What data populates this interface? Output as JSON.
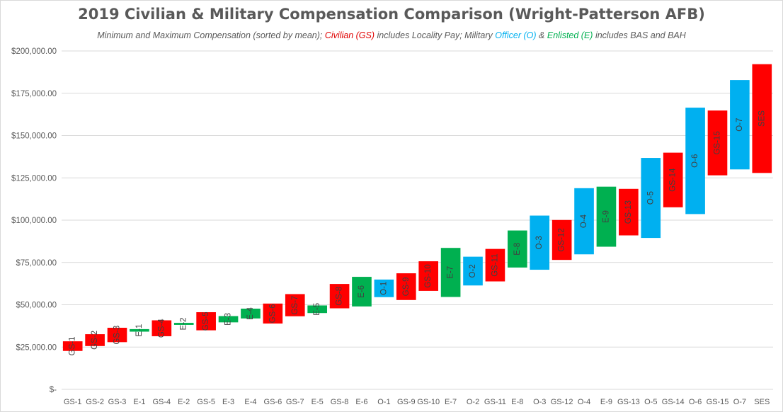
{
  "chart_data": {
    "type": "bar",
    "subtype": "floating-range",
    "title": "2019 Civilian & Military Compensation Comparison (Wright-Patterson AFB)",
    "subtitle": {
      "part1": "Minimum and Maximum Compensation (sorted by mean);  ",
      "civilian": "Civilian (GS)",
      "part2": " includes Locality Pay;   Military ",
      "officer": "Officer (O)",
      "part3": " & ",
      "enlisted": "Enlisted (E)",
      "part4": " includes BAS and BAH"
    },
    "xlabel": "",
    "ylabel": "",
    "ylim": [
      0,
      200000
    ],
    "yticks": [
      0,
      25000,
      50000,
      75000,
      100000,
      125000,
      150000,
      175000,
      200000
    ],
    "ytick_labels": [
      "$-",
      "$25,000.00",
      "$50,000.00",
      "$75,000.00",
      "$100,000.00",
      "$125,000.00",
      "$150,000.00",
      "$175,000.00",
      "$200,000.00"
    ],
    "grid": true,
    "legend": "none",
    "colors": {
      "civilian": "#ff0000",
      "officer": "#00b0f0",
      "enlisted": "#00b050"
    },
    "categories": [
      "GS-1",
      "GS-2",
      "GS-3",
      "E-1",
      "GS-4",
      "E-2",
      "GS-5",
      "E-3",
      "E-4",
      "GS-6",
      "GS-7",
      "E-5",
      "GS-8",
      "E-6",
      "O-1",
      "GS-9",
      "GS-10",
      "E-7",
      "O-2",
      "GS-11",
      "E-8",
      "O-3",
      "GS-12",
      "O-4",
      "E-9",
      "GS-13",
      "O-5",
      "GS-14",
      "O-6",
      "GS-15",
      "O-7",
      "SES"
    ],
    "groups": [
      "civilian",
      "civilian",
      "civilian",
      "enlisted",
      "civilian",
      "enlisted",
      "civilian",
      "enlisted",
      "enlisted",
      "civilian",
      "civilian",
      "enlisted",
      "civilian",
      "enlisted",
      "officer",
      "civilian",
      "civilian",
      "enlisted",
      "officer",
      "civilian",
      "enlisted",
      "officer",
      "civilian",
      "officer",
      "enlisted",
      "civilian",
      "officer",
      "civilian",
      "officer",
      "civilian",
      "officer",
      "civilian"
    ],
    "min": [
      22700,
      25600,
      27900,
      34100,
      31400,
      38100,
      34900,
      39600,
      41900,
      38900,
      43200,
      45100,
      47900,
      49000,
      54500,
      52800,
      58200,
      54600,
      61400,
      63800,
      72000,
      70700,
      76500,
      79800,
      84300,
      91000,
      89500,
      107600,
      103600,
      126500,
      130000,
      127900
    ],
    "max": [
      28400,
      32600,
      36400,
      35600,
      40800,
      39300,
      45600,
      43300,
      47700,
      50700,
      56300,
      49600,
      62300,
      66500,
      64900,
      68600,
      75700,
      83600,
      78400,
      83000,
      93900,
      102700,
      100100,
      118900,
      119800,
      118500,
      136800,
      139900,
      166500,
      164800,
      182800,
      192200
    ]
  }
}
